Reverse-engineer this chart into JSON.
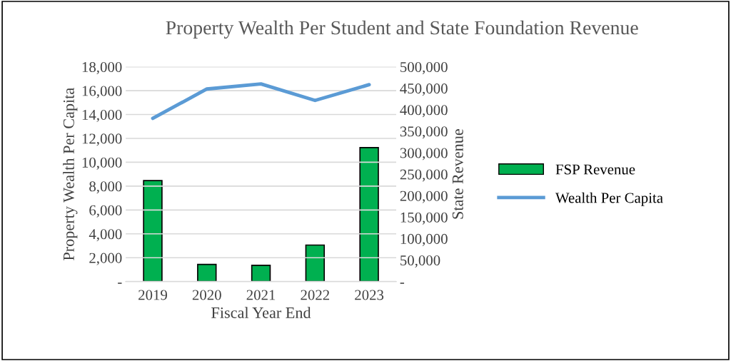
{
  "chart_data": {
    "type": "bar",
    "title": "Property Wealth Per Student and State Foundation Revenue",
    "xlabel": "Fiscal Year End",
    "ylabel": "Property Wealth Per Capita",
    "y2label": "State Revenue",
    "categories": [
      "2019",
      "2020",
      "2021",
      "2022",
      "2023"
    ],
    "series": [
      {
        "name": "FSP Revenue",
        "axis": "y2",
        "color": "#00b050",
        "values": [
          235000,
          40000,
          38000,
          85000,
          312000
        ]
      },
      {
        "name": "Wealth Per Capita",
        "type": "line",
        "axis": "y",
        "color": "#5b9bd5",
        "values": [
          13680,
          16140,
          16560,
          15180,
          16500
        ]
      }
    ],
    "ylim": [
      0,
      18000
    ],
    "yticks": [
      {
        "value": 0,
        "label": "-"
      },
      {
        "value": 2000,
        "label": "2,000"
      },
      {
        "value": 4000,
        "label": "4,000"
      },
      {
        "value": 6000,
        "label": "6,000"
      },
      {
        "value": 8000,
        "label": "8,000"
      },
      {
        "value": 10000,
        "label": "10,000"
      },
      {
        "value": 12000,
        "label": "12,000"
      },
      {
        "value": 14000,
        "label": "14,000"
      },
      {
        "value": 16000,
        "label": "16,000"
      },
      {
        "value": 18000,
        "label": "18,000"
      }
    ],
    "y2lim": [
      0,
      500000
    ],
    "y2ticks": [
      {
        "value": 0,
        "label": "-"
      },
      {
        "value": 50000,
        "label": "50,000"
      },
      {
        "value": 100000,
        "label": "100,000"
      },
      {
        "value": 150000,
        "label": "150,000"
      },
      {
        "value": 200000,
        "label": "200,000"
      },
      {
        "value": 250000,
        "label": "250,000"
      },
      {
        "value": 300000,
        "label": "300,000"
      },
      {
        "value": 350000,
        "label": "350,000"
      },
      {
        "value": 400000,
        "label": "400,000"
      },
      {
        "value": 450000,
        "label": "450,000"
      },
      {
        "value": 500000,
        "label": "500,000"
      }
    ],
    "grid": "y",
    "legend": "right",
    "marker": "none",
    "line_style": "solid"
  }
}
